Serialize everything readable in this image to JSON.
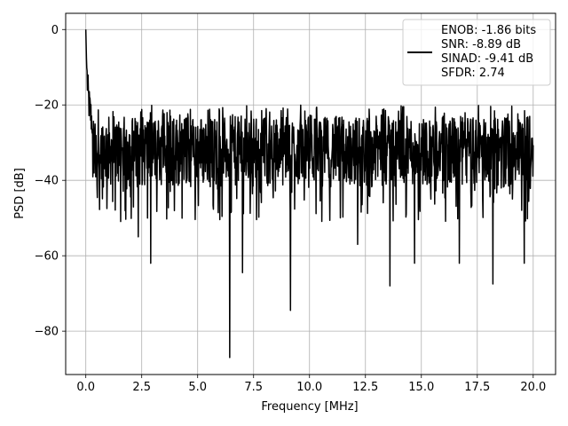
{
  "chart_data": {
    "type": "line",
    "xlabel": "Frequency [MHz]",
    "ylabel": "PSD [dB]",
    "xlim": [
      -0.9,
      21.0
    ],
    "ylim": [
      -91.5,
      4.3
    ],
    "xticks": [
      0.0,
      2.5,
      5.0,
      7.5,
      10.0,
      12.5,
      15.0,
      17.5,
      20.0
    ],
    "xtick_labels": [
      "0.0",
      "2.5",
      "5.0",
      "7.5",
      "10.0",
      "12.5",
      "15.0",
      "17.5",
      "20.0"
    ],
    "yticks": [
      0,
      -20,
      -40,
      -60,
      -80
    ],
    "ytick_labels": [
      "0",
      "−20",
      "−40",
      "−60",
      "−80"
    ],
    "grid": true,
    "legend_position": "top-right",
    "series": [
      {
        "color": "#000000",
        "description_points": {
          "x": [
            0.0,
            0.03,
            0.06,
            0.1,
            0.15,
            0.2,
            0.3,
            0.5,
            0.8,
            1.2,
            2.0,
            2.35,
            2.9,
            3.5,
            4.5,
            5.5,
            6.43,
            7.0,
            7.5,
            8.0,
            9.15,
            10.0,
            11.0,
            12.15,
            12.5,
            13.0,
            13.6,
            14.5,
            14.7,
            15.0,
            16.0,
            16.7,
            17.0,
            18.2,
            18.9,
            19.6,
            20.0
          ],
          "y": [
            0.0,
            -8.0,
            -13.0,
            -17.0,
            -20.0,
            -22.0,
            -25.0,
            -28.0,
            -30.0,
            -31.0,
            -32.0,
            -55.0,
            -62.0,
            -31.0,
            -32.0,
            -31.0,
            -87.0,
            -64.5,
            -32.0,
            -31.0,
            -74.5,
            -32.0,
            -31.0,
            -57.0,
            -32.0,
            -31.0,
            -68.0,
            -32.0,
            -62.0,
            -31.0,
            -32.0,
            -62.0,
            -31.0,
            -67.5,
            -31.0,
            -62.0,
            -33.0
          ]
        }
      }
    ],
    "noise_band": {
      "upper": -23.0,
      "lower": -42.0,
      "center": -32.0
    }
  },
  "legend": {
    "entries": [
      "ENOB: -1.86 bits",
      "SNR: -8.89 dB",
      "SINAD: -9.41 dB",
      "SFDR: 2.74"
    ]
  }
}
